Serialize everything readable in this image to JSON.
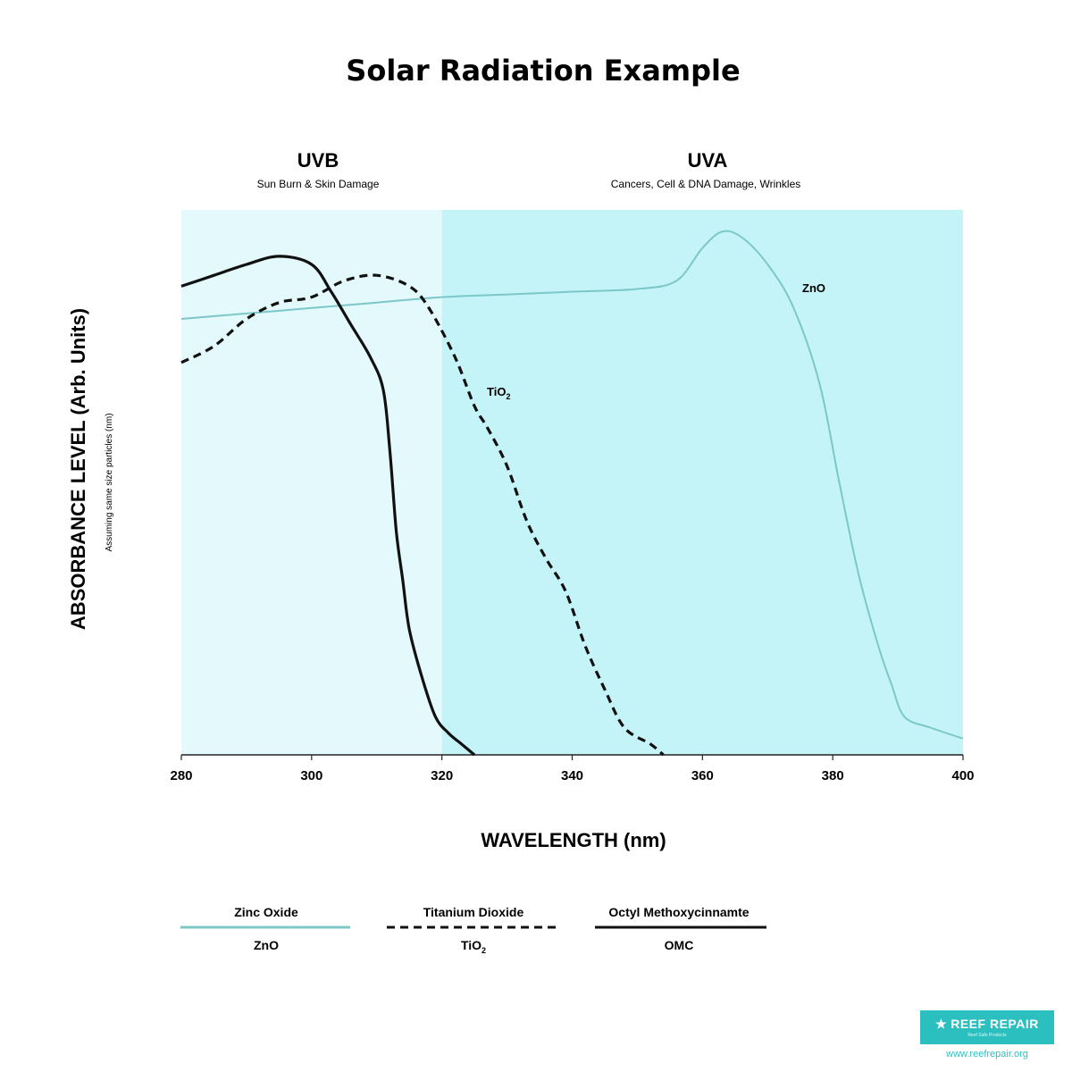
{
  "title": "Solar Radiation Example",
  "bands": [
    {
      "name": "UVB",
      "description": "Sun Burn & Skin Damage",
      "from": 280,
      "to": 320,
      "color": "#e3f9fb"
    },
    {
      "name": "UVA",
      "description": "Cancers, Cell & DNA Damage, Wrinkles",
      "from": 320,
      "to": 400,
      "color": "#c4f3f8"
    }
  ],
  "axes": {
    "xlabel": "WAVELENGTH (nm)",
    "ylabel": "ABSORBANCE LEVEL (Arb. Units)",
    "ylabel_note": "Assuming same size particles (nm)",
    "xlim": [
      280,
      400
    ],
    "ylim": [
      0,
      1
    ],
    "xticks": [
      280,
      300,
      320,
      340,
      360,
      380,
      400
    ]
  },
  "chart_data": {
    "type": "line",
    "title": "Solar Radiation Example",
    "xlabel": "WAVELENGTH (nm)",
    "ylabel": "ABSORBANCE LEVEL (Arb. Units)",
    "xlim": [
      280,
      400
    ],
    "ylim": [
      0,
      1
    ],
    "grid": false,
    "legend_position": "bottom",
    "series": [
      {
        "name": "Zinc Oxide",
        "label": "ZnO",
        "style": "solid",
        "color": "#7cc8c8",
        "x": [
          280,
          290,
          300,
          310,
          320,
          330,
          340,
          350,
          356,
          360,
          363,
          366,
          370,
          374,
          378,
          381,
          384,
          387,
          389,
          391,
          395,
          400
        ],
        "y": [
          0.8,
          0.81,
          0.82,
          0.83,
          0.84,
          0.845,
          0.85,
          0.855,
          0.87,
          0.93,
          0.96,
          0.95,
          0.9,
          0.82,
          0.68,
          0.5,
          0.33,
          0.2,
          0.13,
          0.07,
          0.05,
          0.03
        ]
      },
      {
        "name": "Titanium Dioxide",
        "label": "TiO2",
        "style": "dashed",
        "color": "#111111",
        "x": [
          280,
          285,
          290,
          295,
          300,
          305,
          310,
          315,
          318,
          322,
          325,
          327,
          330,
          333,
          336,
          339,
          342,
          345,
          348,
          352,
          354
        ],
        "y": [
          0.72,
          0.75,
          0.8,
          0.83,
          0.84,
          0.87,
          0.88,
          0.86,
          0.82,
          0.73,
          0.64,
          0.6,
          0.53,
          0.43,
          0.36,
          0.3,
          0.2,
          0.12,
          0.05,
          0.02,
          0.0
        ]
      },
      {
        "name": "Octyl Methoxycinnamte",
        "label": "OMC",
        "style": "solid",
        "color": "#111111",
        "x": [
          280,
          285,
          290,
          295,
          300,
          303,
          306,
          309,
          311,
          312,
          313,
          314,
          315,
          317,
          319,
          321,
          323,
          325
        ],
        "y": [
          0.86,
          0.88,
          0.9,
          0.915,
          0.9,
          0.85,
          0.79,
          0.73,
          0.67,
          0.56,
          0.41,
          0.32,
          0.23,
          0.14,
          0.07,
          0.04,
          0.02,
          0.0
        ]
      }
    ]
  },
  "legend": [
    {
      "name": "Zinc Oxide",
      "symbol": "ZnO",
      "symbol_sub": "",
      "style": "solid",
      "color": "#7cc8c8"
    },
    {
      "name": "Titanium Dioxide",
      "symbol": "TiO",
      "symbol_sub": "2",
      "style": "dashed",
      "color": "#111111"
    },
    {
      "name": "Octyl Methoxycinnamte",
      "symbol": "OMC",
      "symbol_sub": "",
      "style": "solid",
      "color": "#111111"
    }
  ],
  "series_labels": [
    {
      "text": "ZnO",
      "sub": ""
    },
    {
      "text": "TiO",
      "sub": "2"
    }
  ],
  "logo": {
    "star": "★",
    "name": "REEF REPAIR",
    "tagline": "Reef Safe Products",
    "url": "www.reefrepair.org",
    "color": "#2cbfbf"
  }
}
